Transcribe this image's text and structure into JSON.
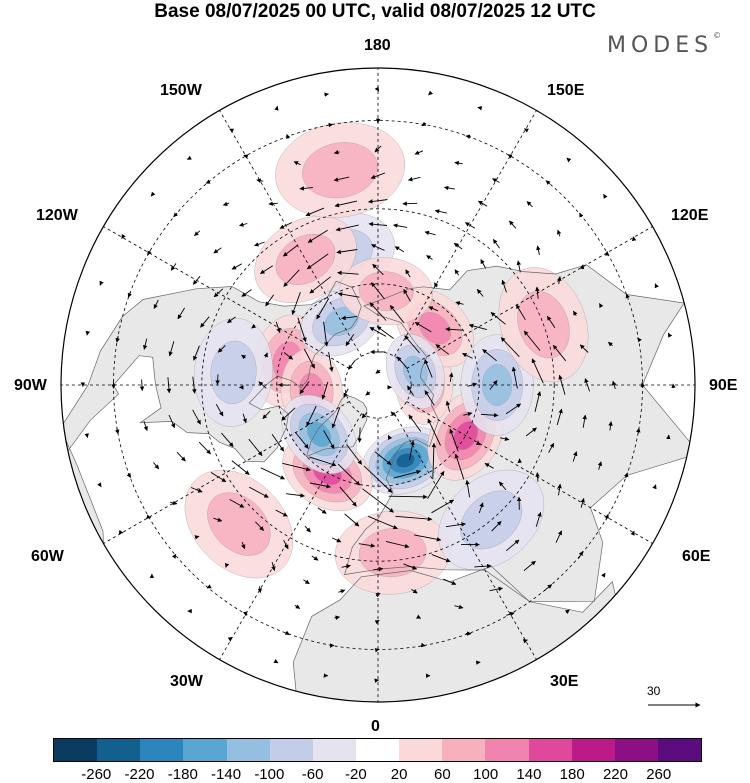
{
  "title": "Base 08/07/2025 00 UTC, valid 08/07/2025 12 UTC",
  "brand": "MODES",
  "brand_mark": "©",
  "longitude_labels": {
    "deg180": "180",
    "deg150w": "150W",
    "deg150e": "150E",
    "deg120w": "120W",
    "deg120e": "120E",
    "deg90w": "90W",
    "deg90e": "90E",
    "deg60w": "60W",
    "deg60e": "60E",
    "deg30w": "30W",
    "deg30e": "30E",
    "deg0": "0"
  },
  "vector_reference": {
    "value": "30"
  },
  "colorbar": {
    "colors": [
      "#0b3b5f",
      "#13608f",
      "#2c86bd",
      "#5aa6d2",
      "#95bfe0",
      "#c4cde8",
      "#e5e3f0",
      "#ffffff",
      "#fbd9d9",
      "#f7b1be",
      "#f084ae",
      "#e0499b",
      "#bc1a86",
      "#8c0f85",
      "#5b0c7f"
    ],
    "ticks": [
      "-260",
      "-220",
      "-180",
      "-140",
      "-100",
      "-60",
      "-20",
      "20",
      "60",
      "100",
      "140",
      "180",
      "220",
      "260"
    ]
  },
  "anomaly_fields": [
    {
      "id": "blue-scandinavia",
      "sign": "neg",
      "level": 5,
      "lon": 20,
      "lat": 66
    },
    {
      "id": "red-north-atlantic",
      "sign": "pos",
      "level": 3,
      "lon": -30,
      "lat": 60
    },
    {
      "id": "red-west-siberia",
      "sign": "pos",
      "level": 3,
      "lon": 60,
      "lat": 60
    },
    {
      "id": "red-arctic-east",
      "sign": "pos",
      "level": 2,
      "lon": 90,
      "lat": 76
    },
    {
      "id": "red-east-siberia",
      "sign": "pos",
      "level": 2,
      "lon": 135,
      "lat": 66
    },
    {
      "id": "red-canada",
      "sign": "pos",
      "level": 2,
      "lon": -105,
      "lat": 62
    },
    {
      "id": "red-hudson",
      "sign": "pos",
      "level": 2,
      "lon": -85,
      "lat": 70
    },
    {
      "id": "blue-greenland",
      "sign": "neg",
      "level": 3,
      "lon": -50,
      "lat": 67
    },
    {
      "id": "blue-alaska",
      "sign": "neg",
      "level": 2,
      "lon": -150,
      "lat": 68
    },
    {
      "id": "blue-arctic",
      "sign": "neg",
      "level": 2,
      "lon": 110,
      "lat": 78
    },
    {
      "id": "blue-central-asia",
      "sign": "neg",
      "level": 2,
      "lon": 90,
      "lat": 55
    },
    {
      "id": "red-china",
      "sign": "pos",
      "level": 1,
      "lon": 110,
      "lat": 40
    },
    {
      "id": "blue-north-pacific",
      "sign": "neg",
      "level": 1,
      "lon": -165,
      "lat": 50
    },
    {
      "id": "red-bering",
      "sign": "pos",
      "level": 1,
      "lon": 175,
      "lat": 62
    },
    {
      "id": "red-pacific",
      "sign": "pos",
      "level": 1,
      "lon": -150,
      "lat": 48
    },
    {
      "id": "red-europe-south",
      "sign": "pos",
      "level": 1,
      "lon": 5,
      "lat": 42
    },
    {
      "id": "red-mid-atlantic",
      "sign": "pos",
      "level": 1,
      "lon": -45,
      "lat": 35
    },
    {
      "id": "blue-north-america",
      "sign": "neg",
      "level": 1,
      "lon": -95,
      "lat": 48
    },
    {
      "id": "blue-east-asia",
      "sign": "neg",
      "level": 1,
      "lon": 40,
      "lat": 40
    },
    {
      "id": "red-pacific-south",
      "sign": "pos",
      "level": 1,
      "lon": -170,
      "lat": 30
    }
  ]
}
